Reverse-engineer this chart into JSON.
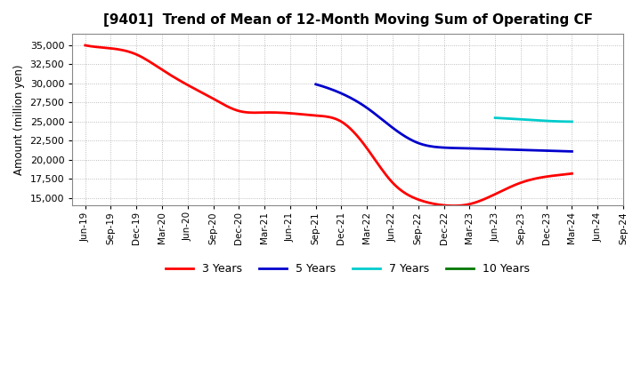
{
  "title": "[9401]  Trend of Mean of 12-Month Moving Sum of Operating CF",
  "ylabel": "Amount (million yen)",
  "background_color": "#ffffff",
  "plot_bg_color": "#ffffff",
  "grid_color": "#999999",
  "ylim": [
    14000,
    36500
  ],
  "yticks": [
    15000,
    17500,
    20000,
    22500,
    25000,
    27500,
    30000,
    32500,
    35000
  ],
  "legend_labels": [
    "3 Years",
    "5 Years",
    "7 Years",
    "10 Years"
  ],
  "legend_colors": [
    "#ff0000",
    "#0000cc",
    "#00cccc",
    "#007700"
  ],
  "x_labels": [
    "Jun-19",
    "Sep-19",
    "Dec-19",
    "Mar-20",
    "Jun-20",
    "Sep-20",
    "Dec-20",
    "Mar-21",
    "Jun-21",
    "Sep-21",
    "Dec-21",
    "Mar-22",
    "Jun-22",
    "Sep-22",
    "Dec-22",
    "Mar-23",
    "Jun-23",
    "Sep-23",
    "Dec-23",
    "Mar-24",
    "Jun-24",
    "Sep-24"
  ],
  "series_3y": {
    "color": "#ff0000",
    "label": "3 Years",
    "x": [
      0,
      1,
      2,
      3,
      4,
      5,
      6,
      7,
      8,
      9,
      10,
      11,
      12,
      13,
      14,
      15,
      16,
      17,
      18,
      19
    ],
    "y": [
      35000,
      34600,
      33800,
      31800,
      29800,
      28000,
      26400,
      26200,
      26100,
      25800,
      25000,
      21500,
      17000,
      14800,
      14050,
      14200,
      15500,
      17000,
      17800,
      18200
    ]
  },
  "series_5y": {
    "color": "#0000cc",
    "label": "5 Years",
    "x": [
      9,
      10,
      11,
      12,
      13,
      14,
      15,
      16,
      17,
      18,
      19
    ],
    "y": [
      29900,
      28700,
      26800,
      24200,
      22200,
      21600,
      21500,
      21400,
      21300,
      21200,
      21100
    ]
  },
  "series_7y": {
    "color": "#00cccc",
    "label": "7 Years",
    "x": [
      16,
      17,
      18,
      19
    ],
    "y": [
      25500,
      25300,
      25100,
      25000
    ]
  },
  "series_10y": {
    "color": "#007700",
    "label": "10 Years",
    "x": [],
    "y": []
  }
}
